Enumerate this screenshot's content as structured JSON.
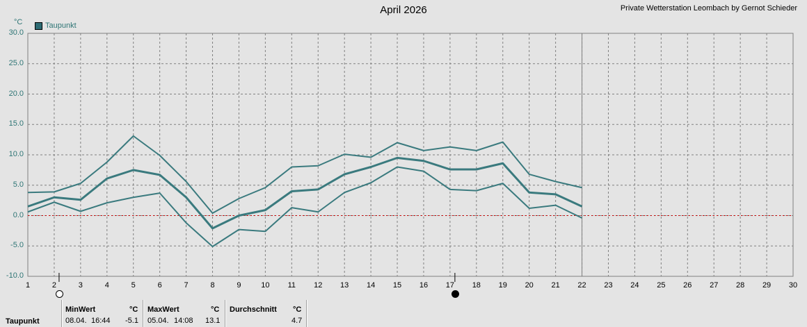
{
  "header": {
    "title": "April 2026",
    "credit": "Private Wetterstation Leombach by Gernot Schieder"
  },
  "chart_data": {
    "type": "line",
    "title": "April 2026",
    "yunit": "°C",
    "ylim": [
      -10,
      30
    ],
    "y_ticks": [
      "30.0",
      "25.0",
      "20.0",
      "15.0",
      "10.0",
      "5.0",
      "0.0",
      "-5.0",
      "-10.0"
    ],
    "x_ticks": [
      "1",
      "2",
      "3",
      "4",
      "5",
      "6",
      "7",
      "8",
      "9",
      "10",
      "11",
      "12",
      "13",
      "14",
      "15",
      "16",
      "17",
      "18",
      "19",
      "20",
      "21",
      "22",
      "23",
      "24",
      "25",
      "26",
      "27",
      "28",
      "29",
      "30"
    ],
    "xlim": [
      1,
      30
    ],
    "grid": true,
    "legend": {
      "position": "top-left",
      "entries": [
        "Taupunkt"
      ]
    },
    "reference_line": {
      "y": 0,
      "color": "#cc0000"
    },
    "current_day_marker": 22,
    "series_color": "#3a7a7e",
    "x": [
      1,
      2,
      3,
      4,
      5,
      6,
      7,
      8,
      9,
      10,
      11,
      12,
      13,
      14,
      15,
      16,
      17,
      18,
      19,
      20,
      21,
      22
    ],
    "series": [
      {
        "name": "Taupunkt",
        "role": "max",
        "values": [
          3.8,
          3.9,
          5.3,
          8.8,
          13.1,
          9.9,
          5.6,
          0.4,
          2.8,
          4.6,
          8.0,
          8.2,
          10.1,
          9.6,
          12.0,
          10.7,
          11.3,
          10.7,
          12.1,
          6.8,
          5.6,
          4.6
        ]
      },
      {
        "name": "Taupunkt",
        "role": "avg",
        "values": [
          1.5,
          3.0,
          2.6,
          6.1,
          7.5,
          6.7,
          3.0,
          -2.1,
          0.0,
          0.9,
          4.0,
          4.3,
          6.8,
          8.0,
          9.5,
          9.0,
          7.6,
          7.6,
          8.6,
          3.8,
          3.5,
          1.5
        ]
      },
      {
        "name": "Taupunkt",
        "role": "min",
        "values": [
          0.6,
          2.2,
          0.7,
          2.1,
          3.0,
          3.7,
          -1.2,
          -5.1,
          -2.3,
          -2.6,
          1.3,
          0.6,
          3.8,
          5.4,
          8.0,
          7.3,
          4.3,
          4.1,
          5.3,
          1.2,
          1.7,
          -0.4
        ]
      }
    ],
    "moon_phases": [
      {
        "day": 2,
        "phase": "full"
      },
      {
        "day": 17,
        "phase": "new"
      }
    ]
  },
  "stats": {
    "row_label": "Taupunkt",
    "min": {
      "header": "MinWert",
      "unit": "°C",
      "date": "08.04.",
      "time": "16:44",
      "value": "-5.1"
    },
    "max": {
      "header": "MaxWert",
      "unit": "°C",
      "date": "05.04.",
      "time": "14:08",
      "value": "13.1"
    },
    "avg": {
      "header": "Durchschnitt",
      "unit": "°C",
      "value": "4.7"
    }
  }
}
